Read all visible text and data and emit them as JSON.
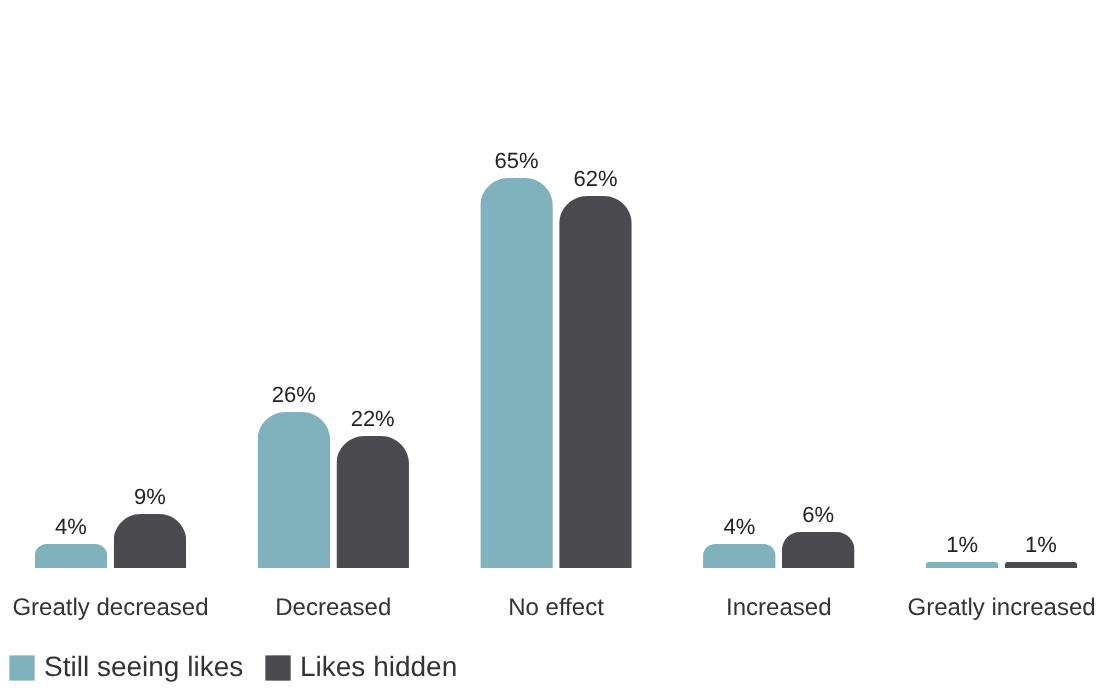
{
  "chart_data": {
    "type": "bar",
    "categories": [
      "Greatly decreased",
      "Decreased",
      "No effect",
      "Increased",
      "Greatly increased"
    ],
    "series": [
      {
        "name": "Still seeing likes",
        "color": "#7fb2bd",
        "values": [
          4,
          26,
          65,
          4,
          1
        ],
        "value_labels": [
          "4%",
          "26%",
          "65%",
          "4%",
          "1%"
        ]
      },
      {
        "name": "Likes hidden",
        "color": "#4a4a4f",
        "values": [
          9,
          22,
          62,
          6,
          1
        ],
        "value_labels": [
          "9%",
          "22%",
          "62%",
          "6%",
          "1%"
        ]
      }
    ],
    "legend": "bottom"
  }
}
